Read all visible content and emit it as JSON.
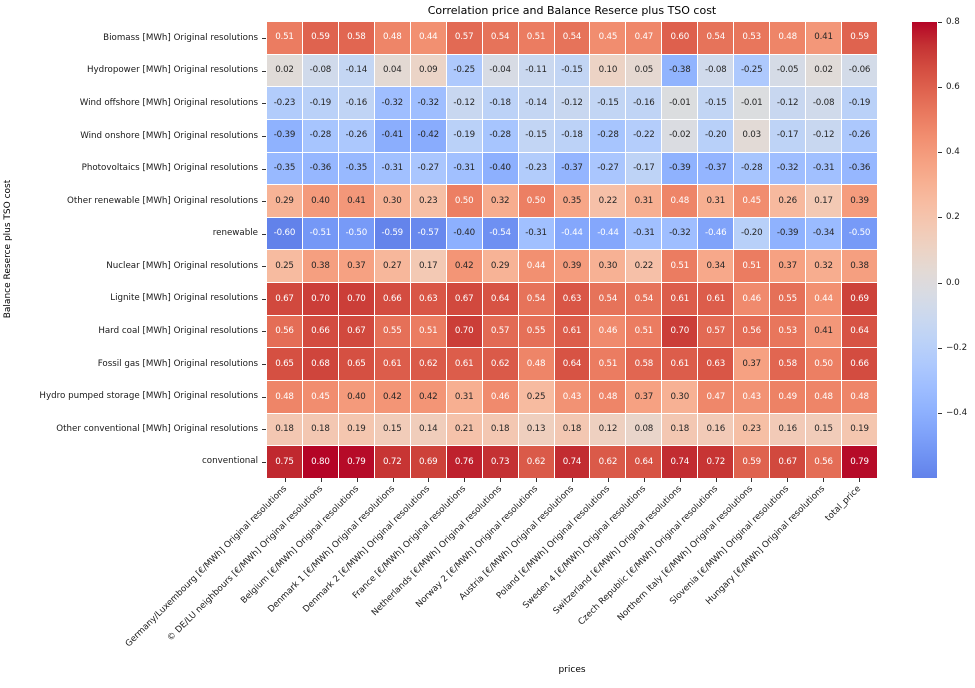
{
  "chart_data": {
    "type": "heatmap",
    "title": "Correlation price and Balance Reserce plus TSO cost",
    "xlabel": "prices",
    "ylabel": "Balance Reserce plus TSO cost",
    "colormap": "coolwarm",
    "color_scale": {
      "vmin": -0.6,
      "vmax": 0.8,
      "center": 0,
      "min_hex": "#6282ea",
      "center_hex": "#dddddd",
      "max_hex": "#b40426"
    },
    "colorbar_ticks": [
      {
        "value": 0.8,
        "label": "0.8"
      },
      {
        "value": 0.6,
        "label": "0.6"
      },
      {
        "value": 0.4,
        "label": "0.4"
      },
      {
        "value": 0.2,
        "label": "0.2"
      },
      {
        "value": 0.0,
        "label": "0.0"
      },
      {
        "value": -0.2,
        "label": "−0.2"
      },
      {
        "value": -0.4,
        "label": "−0.4"
      }
    ],
    "annotation_text_colors": {
      "light": "#ffffff",
      "dark": "#262626"
    },
    "rows": [
      "Biomass [MWh] Original resolutions",
      "Hydropower [MWh] Original resolutions",
      "Wind offshore [MWh] Original resolutions",
      "Wind onshore [MWh] Original resolutions",
      "Photovoltaics [MWh] Original resolutions",
      "Other renewable [MWh] Original resolutions",
      "renewable",
      "Nuclear [MWh] Original resolutions",
      "Lignite [MWh] Original resolutions",
      "Hard coal [MWh] Original resolutions",
      "Fossil gas [MWh] Original resolutions",
      "Hydro pumped storage [MWh] Original resolutions",
      "Other conventional [MWh] Original resolutions",
      "conventional"
    ],
    "columns": [
      "Germany/Luxembourg [€/MWh] Original resolutions",
      "© DE/LU neighbours [€/MWh] Original resolutions",
      "Belgium [€/MWh] Original resolutions",
      "Denmark 1 [€/MWh] Original resolutions",
      "Denmark 2 [€/MWh] Original resolutions",
      "France [€/MWh] Original resolutions",
      "Netherlands [€/MWh] Original resolutions",
      "Norway 2 [€/MWh] Original resolutions",
      "Austria [€/MWh] Original resolutions",
      "Poland [€/MWh] Original resolutions",
      "Sweden 4 [€/MWh] Original resolutions",
      "Switzerland [€/MWh] Original resolutions",
      "Czech Republic [€/MWh] Original resolutions",
      "Northern Italy [€/MWh] Original resolutions",
      "Slovenia [€/MWh] Original resolutions",
      "Hungary [€/MWh] Original resolutions",
      "total_price"
    ],
    "values": [
      [
        0.51,
        0.59,
        0.58,
        0.48,
        0.44,
        0.57,
        0.54,
        0.51,
        0.54,
        0.45,
        0.47,
        0.6,
        0.54,
        0.53,
        0.48,
        0.41,
        0.59
      ],
      [
        0.02,
        -0.08,
        -0.14,
        0.04,
        0.09,
        -0.25,
        -0.04,
        -0.11,
        -0.15,
        0.1,
        0.05,
        -0.38,
        -0.08,
        -0.25,
        -0.05,
        0.02,
        -0.06
      ],
      [
        -0.23,
        -0.19,
        -0.16,
        -0.32,
        -0.32,
        -0.12,
        -0.18,
        -0.14,
        -0.12,
        -0.15,
        -0.16,
        -0.01,
        -0.15,
        -0.01,
        -0.12,
        -0.08,
        -0.19
      ],
      [
        -0.39,
        -0.28,
        -0.26,
        -0.41,
        -0.42,
        -0.19,
        -0.28,
        -0.15,
        -0.18,
        -0.28,
        -0.22,
        -0.02,
        -0.2,
        0.03,
        -0.17,
        -0.12,
        -0.26
      ],
      [
        -0.35,
        -0.36,
        -0.35,
        -0.31,
        -0.27,
        -0.31,
        -0.4,
        -0.23,
        -0.37,
        -0.27,
        -0.17,
        -0.39,
        -0.37,
        -0.28,
        -0.32,
        -0.31,
        -0.36
      ],
      [
        0.29,
        0.4,
        0.41,
        0.3,
        0.23,
        0.5,
        0.32,
        0.5,
        0.35,
        0.22,
        0.31,
        0.48,
        0.31,
        0.45,
        0.26,
        0.17,
        0.39
      ],
      [
        -0.6,
        -0.51,
        -0.5,
        -0.59,
        -0.57,
        -0.4,
        -0.54,
        -0.31,
        -0.44,
        -0.44,
        -0.31,
        -0.32,
        -0.46,
        -0.2,
        -0.39,
        -0.34,
        -0.5
      ],
      [
        0.25,
        0.38,
        0.37,
        0.27,
        0.17,
        0.42,
        0.29,
        0.44,
        0.39,
        0.3,
        0.22,
        0.51,
        0.34,
        0.51,
        0.37,
        0.32,
        0.38
      ],
      [
        0.67,
        0.7,
        0.7,
        0.66,
        0.63,
        0.67,
        0.64,
        0.54,
        0.63,
        0.54,
        0.54,
        0.61,
        0.61,
        0.46,
        0.55,
        0.44,
        0.69
      ],
      [
        0.56,
        0.66,
        0.67,
        0.55,
        0.51,
        0.7,
        0.57,
        0.55,
        0.61,
        0.46,
        0.51,
        0.7,
        0.57,
        0.56,
        0.53,
        0.41,
        0.64
      ],
      [
        0.65,
        0.68,
        0.65,
        0.61,
        0.62,
        0.61,
        0.62,
        0.48,
        0.64,
        0.51,
        0.58,
        0.61,
        0.63,
        0.37,
        0.58,
        0.5,
        0.66
      ],
      [
        0.48,
        0.45,
        0.4,
        0.42,
        0.42,
        0.31,
        0.46,
        0.25,
        0.43,
        0.48,
        0.37,
        0.3,
        0.47,
        0.43,
        0.49,
        0.48,
        0.48
      ],
      [
        0.18,
        0.18,
        0.19,
        0.15,
        0.14,
        0.21,
        0.18,
        0.13,
        0.18,
        0.12,
        0.08,
        0.18,
        0.16,
        0.23,
        0.16,
        0.15,
        0.19
      ],
      [
        0.75,
        0.8,
        0.79,
        0.72,
        0.69,
        0.76,
        0.73,
        0.62,
        0.74,
        0.62,
        0.64,
        0.74,
        0.72,
        0.59,
        0.67,
        0.56,
        0.79
      ]
    ]
  }
}
